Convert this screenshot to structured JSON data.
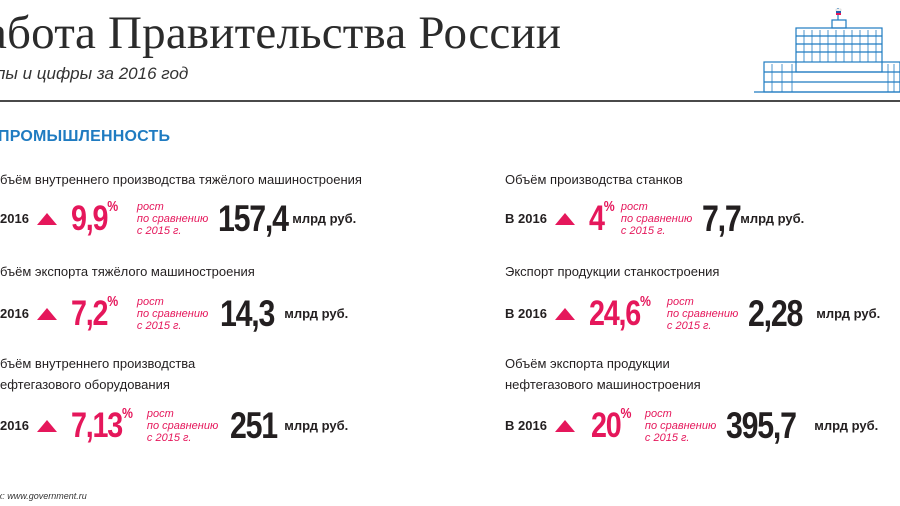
{
  "header": {
    "title": "аботa Правительства России",
    "subtitle": "пы и цифры за 2016 год"
  },
  "section_title": "ПРОМЫШЛЕННОСТЬ",
  "colors": {
    "accent": "#e5175b",
    "section": "#1f7bc1",
    "text": "#231f20"
  },
  "stats": [
    {
      "title1": "бъём внутреннего производства тяжёлого машиностроения",
      "title2": "",
      "year": "2016",
      "growth": "9,9",
      "pct_sign": "%",
      "note": "рост\nпо сравнению\nс 2015 г.",
      "value": "157,4",
      "unit": "млрд руб."
    },
    {
      "title1": "бъём экспорта тяжёлого машиностроения",
      "title2": "",
      "year": "2016",
      "growth": "7,2",
      "pct_sign": "%",
      "note": "рост\nпо сравнению\nс 2015 г.",
      "value": "14,3",
      "unit": "млрд руб."
    },
    {
      "title1": "бъём внутреннего производства",
      "title2": "ефтегазового оборудования",
      "year": "2016",
      "growth": "7,13",
      "pct_sign": "%",
      "note": "рост\nпо сравнению\nс 2015 г.",
      "value": "251",
      "unit": "млрд руб."
    },
    {
      "title1": "Объём производства станков",
      "title2": "",
      "year": "В 2016",
      "growth": "4",
      "pct_sign": "%",
      "note": "рост\nпо сравнению\nс 2015 г.",
      "value": "7,7",
      "unit": "млрд руб."
    },
    {
      "title1": "Экспорт продукции станкостроения",
      "title2": "",
      "year": "В 2016",
      "growth": "24,6",
      "pct_sign": "%",
      "note": "рост\nпо сравнению\nс 2015 г.",
      "value": "2,28",
      "unit": "млрд руб."
    },
    {
      "title1": "Объём экспорта продукции",
      "title2": "нефтегазового машиностроения",
      "year": "В 2016",
      "growth": "20",
      "pct_sign": "%",
      "note": "рост\nпо сравнению\nс 2015 г.",
      "value": "395,7",
      "unit": "млрд руб."
    }
  ],
  "source": "к: www.government.ru"
}
